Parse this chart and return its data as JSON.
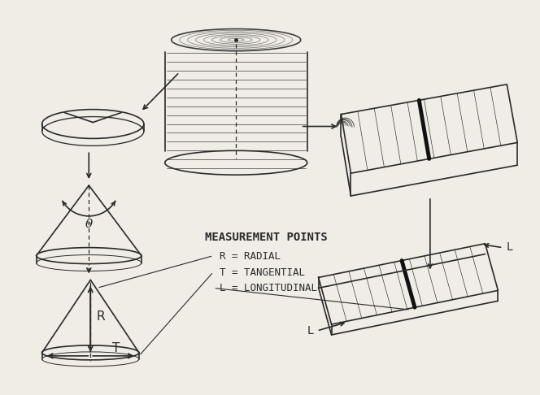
{
  "bg_color": "#f0ede6",
  "line_color": "#2a2a2a",
  "line_width": 1.2,
  "fig_width": 6.64,
  "fig_height": 4.86,
  "dpi": 100,
  "measurement_text": "MEASUREMENT POINTS",
  "r_label": "R = RADIAL",
  "t_label": "T = TANGENTIAL",
  "l_label": "L = LONGITUDINAL",
  "theta_label": "θ",
  "r_arrow_label": "R",
  "t_arrow_label": "T",
  "l_arrow_label_1": "L",
  "l_arrow_label_2": "L"
}
